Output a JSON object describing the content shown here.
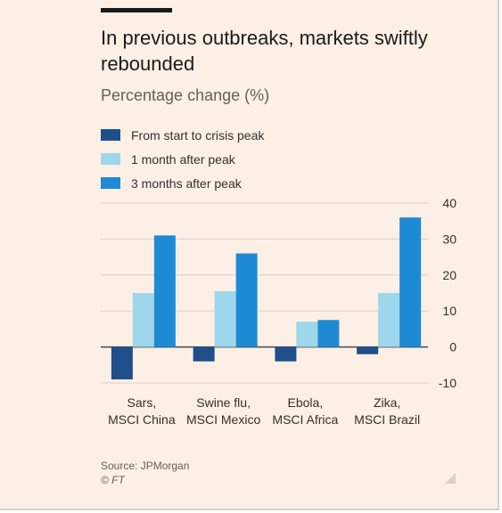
{
  "title": "In previous outbreaks, markets swiftly rebounded",
  "subtitle": "Percentage change (%)",
  "source": "Source: JPMorgan",
  "credit": "© FT",
  "colors": {
    "background": "#fbefe6",
    "series": [
      "#1f4f8a",
      "#9ed6eb",
      "#1f8ad4"
    ],
    "grid": "#d9d0c8",
    "zero_line": "#4d4845",
    "text": "#33302e"
  },
  "chart_data": {
    "type": "bar",
    "title": "In previous outbreaks, markets swiftly rebounded",
    "subtitle": "Percentage change (%)",
    "categories": [
      [
        "Sars,",
        "MSCI China"
      ],
      [
        "Swine flu,",
        "MSCI Mexico"
      ],
      [
        "Ebola,",
        "MSCI Africa"
      ],
      [
        "Zika,",
        "MSCI Brazil"
      ]
    ],
    "series": [
      {
        "name": "From start to crisis peak",
        "values": [
          -9,
          -4,
          -4,
          -2
        ]
      },
      {
        "name": "1 month after peak",
        "values": [
          15,
          15.5,
          7,
          15
        ]
      },
      {
        "name": "3 months after peak",
        "values": [
          31,
          26,
          7.5,
          36
        ]
      }
    ],
    "y_ticks": [
      40,
      30,
      20,
      10,
      0,
      -10
    ],
    "ylim": [
      -10,
      40
    ],
    "y_axis_side": "right",
    "grid": true,
    "legend_position": "top-left"
  }
}
